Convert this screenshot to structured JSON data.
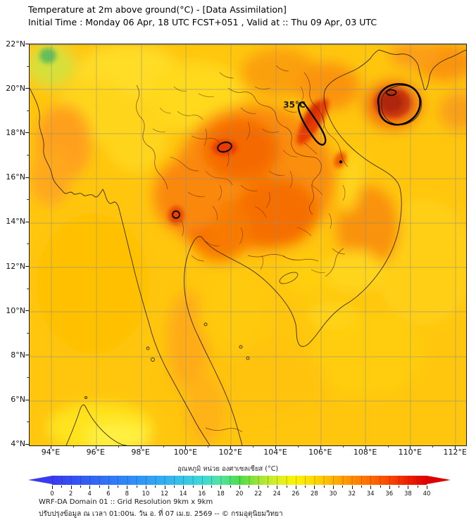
{
  "header": {
    "title": "Temperature at 2m above ground(°C) - [Data Assimilation]",
    "subtitle": "Initial Time : Monday 06 Apr, 18 UTC FCST+051 , Valid at :: Thu 09 Apr, 03 UTC"
  },
  "map": {
    "contour_label": "35°C",
    "lat_labels": [
      "22°N",
      "20°N",
      "18°N",
      "16°N",
      "14°N",
      "12°N",
      "10°N",
      "8°N",
      "6°N",
      "4°N"
    ],
    "lon_labels": [
      "94°E",
      "96°E",
      "98°E",
      "100°E",
      "102°E",
      "104°E",
      "106°E",
      "108°E",
      "110°E",
      "112°E"
    ]
  },
  "colorbar": {
    "title": "อุณหภูมิ หน่วย องศาเซลเซียส (°C)",
    "min": 0,
    "max": 40,
    "label_step": 2,
    "tick_labels": [
      "0",
      "2",
      "4",
      "6",
      "8",
      "10",
      "12",
      "14",
      "16",
      "18",
      "20",
      "22",
      "24",
      "26",
      "28",
      "30",
      "32",
      "34",
      "36",
      "38",
      "40"
    ],
    "left_arrow_color": "#3A3AF0",
    "right_arrow_color": "#DC0000",
    "stops": [
      {
        "v": 0,
        "c": "#3A3AF0"
      },
      {
        "v": 4,
        "c": "#3161F5"
      },
      {
        "v": 8,
        "c": "#2F88F8"
      },
      {
        "v": 12,
        "c": "#32AFF2"
      },
      {
        "v": 16,
        "c": "#3DD8DA"
      },
      {
        "v": 18,
        "c": "#52E49E"
      },
      {
        "v": 20,
        "c": "#4CDC4C"
      },
      {
        "v": 22,
        "c": "#9CE636"
      },
      {
        "v": 24,
        "c": "#DAEF25"
      },
      {
        "v": 26,
        "c": "#FDF303"
      },
      {
        "v": 28,
        "c": "#FFD800"
      },
      {
        "v": 30,
        "c": "#FFB300"
      },
      {
        "v": 32,
        "c": "#FF8E00"
      },
      {
        "v": 34,
        "c": "#FF6A00"
      },
      {
        "v": 36,
        "c": "#FA4600"
      },
      {
        "v": 38,
        "c": "#EE2100"
      },
      {
        "v": 40,
        "c": "#E00000"
      }
    ]
  },
  "footer": {
    "line1": "WRF-DA Domain 01 :: Grid Resolution 9km x 9km",
    "line2": "ปรับปรุงข้อมูล ณ เวลา 01:00น. วัน อ. ที่ 07 เม.ย. 2569 -- © กรมอุตุนิยมวิทยา"
  },
  "chart_data": {
    "type": "heatmap",
    "title": "Temperature at 2m above ground(°C) - [Data Assimilation]",
    "initial_time": "Monday 06 Apr, 18 UTC",
    "forecast": "FCST+051",
    "valid_time": "Thu 09 Apr, 03 UTC",
    "lon_ticks": [
      94,
      96,
      98,
      100,
      102,
      104,
      106,
      108,
      110,
      112
    ],
    "lat_ticks": [
      4,
      6,
      8,
      10,
      12,
      14,
      16,
      18,
      20,
      22
    ],
    "colorbar_range_c": [
      0,
      40
    ],
    "colorbar_tick_step": 2,
    "colorbar_unit": "°C",
    "highlighted_contour_value_c": 35,
    "contour_35c_regions": [
      {
        "approx_lat": 19.4,
        "approx_lon": 109.0,
        "note": "western Hainan, dark red core ~37-38°C"
      },
      {
        "approx_lat": 18.6,
        "approx_lon": 105.6,
        "note": "elongated band along north-central Vietnam coast"
      },
      {
        "approx_lat": 17.4,
        "approx_lon": 101.7,
        "note": "small closed contour, NE Thailand/Loei area"
      },
      {
        "approx_lat": 14.4,
        "approx_lon": 99.5,
        "note": "tiny closed contour, western Thailand"
      },
      {
        "approx_lat": 16.6,
        "approx_lon": 106.7,
        "note": "tiny spot near Vietnam coast"
      }
    ],
    "field_summary": "Land mostly 32-35°C (orange); seas ~29-31°C (golden yellow); yellow patches ~27-29°C over Cambodia lowlands, N Myanmar and Sumatra; small green ~22-24°C spot near 21.8N 94.3E"
  }
}
